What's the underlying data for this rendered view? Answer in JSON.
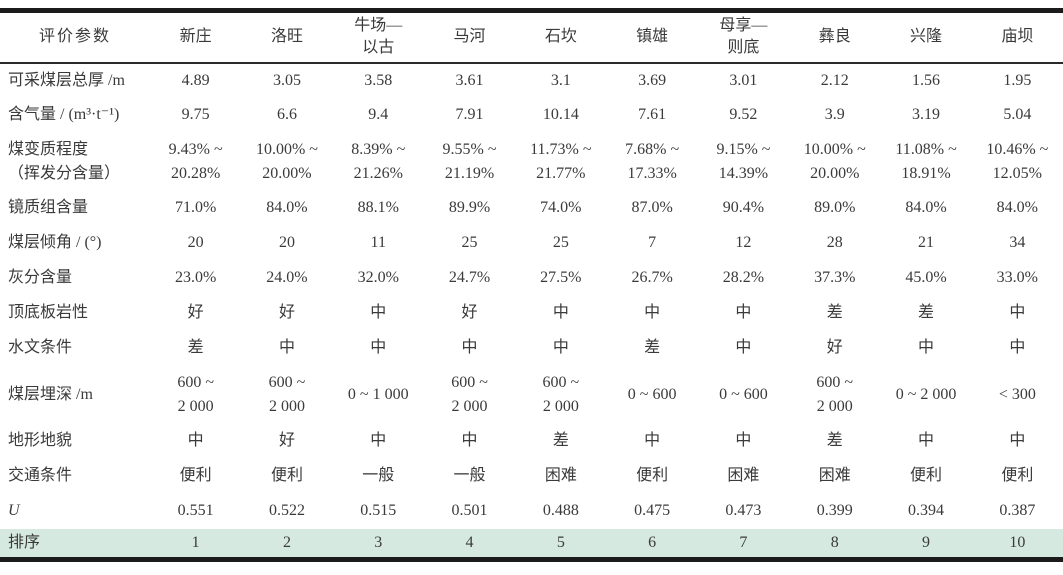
{
  "table": {
    "header": {
      "param_label": "评价参数",
      "columns": [
        "新庄",
        "洛旺",
        "牛场—\n以古",
        "马河",
        "石坎",
        "镇雄",
        "母享—\n则底",
        "彝良",
        "兴隆",
        "庙坝"
      ]
    },
    "rows": [
      {
        "label": "可采煤层总厚 /m",
        "values": [
          "4.89",
          "3.05",
          "3.58",
          "3.61",
          "3.1",
          "3.69",
          "3.01",
          "2.12",
          "1.56",
          "1.95"
        ]
      },
      {
        "label": "含气量 / (m³·t⁻¹)",
        "values": [
          "9.75",
          "6.6",
          "9.4",
          "7.91",
          "10.14",
          "7.61",
          "9.52",
          "3.9",
          "3.19",
          "5.04"
        ]
      },
      {
        "label": "煤变质程度\n（挥发分含量）",
        "tall": true,
        "values": [
          "9.43% ~\n20.28%",
          "10.00% ~\n20.00%",
          "8.39% ~\n21.26%",
          "9.55% ~\n21.19%",
          "11.73% ~\n21.77%",
          "7.68% ~\n17.33%",
          "9.15% ~\n14.39%",
          "10.00% ~\n20.00%",
          "11.08% ~\n18.91%",
          "10.46% ~\n12.05%"
        ]
      },
      {
        "label": "镜质组含量",
        "values": [
          "71.0%",
          "84.0%",
          "88.1%",
          "89.9%",
          "74.0%",
          "87.0%",
          "90.4%",
          "89.0%",
          "84.0%",
          "84.0%"
        ]
      },
      {
        "label": "煤层倾角 / (°)",
        "values": [
          "20",
          "20",
          "11",
          "25",
          "25",
          "7",
          "12",
          "28",
          "21",
          "34"
        ]
      },
      {
        "label": "灰分含量",
        "values": [
          "23.0%",
          "24.0%",
          "32.0%",
          "24.7%",
          "27.5%",
          "26.7%",
          "28.2%",
          "37.3%",
          "45.0%",
          "33.0%"
        ]
      },
      {
        "label": "顶底板岩性",
        "values": [
          "好",
          "好",
          "中",
          "好",
          "中",
          "中",
          "中",
          "差",
          "差",
          "中"
        ]
      },
      {
        "label": "水文条件",
        "values": [
          "差",
          "中",
          "中",
          "中",
          "中",
          "差",
          "中",
          "好",
          "中",
          "中"
        ]
      },
      {
        "label": "煤层埋深 /m",
        "tall": true,
        "values": [
          "600 ~\n2 000",
          "600 ~\n2 000",
          "0 ~ 1 000",
          "600 ~\n2 000",
          "600 ~\n2 000",
          "0 ~ 600",
          "0 ~ 600",
          "600 ~\n2 000",
          "0 ~ 2 000",
          "< 300"
        ]
      },
      {
        "label": "地形地貌",
        "values": [
          "中",
          "好",
          "中",
          "中",
          "差",
          "中",
          "中",
          "差",
          "中",
          "中"
        ]
      },
      {
        "label": "交通条件",
        "values": [
          "便利",
          "便利",
          "一般",
          "一般",
          "困难",
          "便利",
          "困难",
          "困难",
          "便利",
          "便利"
        ]
      },
      {
        "label": "U",
        "italic_label": true,
        "values": [
          "0.551",
          "0.522",
          "0.515",
          "0.501",
          "0.488",
          "0.475",
          "0.473",
          "0.399",
          "0.394",
          "0.387"
        ]
      },
      {
        "label": "排序",
        "highlight": true,
        "values": [
          "1",
          "2",
          "3",
          "4",
          "5",
          "6",
          "7",
          "8",
          "9",
          "10"
        ]
      }
    ]
  },
  "colors": {
    "highlight_row_bg": "#d5e9e1",
    "text": "#3a3a3a",
    "border": "#1b1b1b"
  }
}
